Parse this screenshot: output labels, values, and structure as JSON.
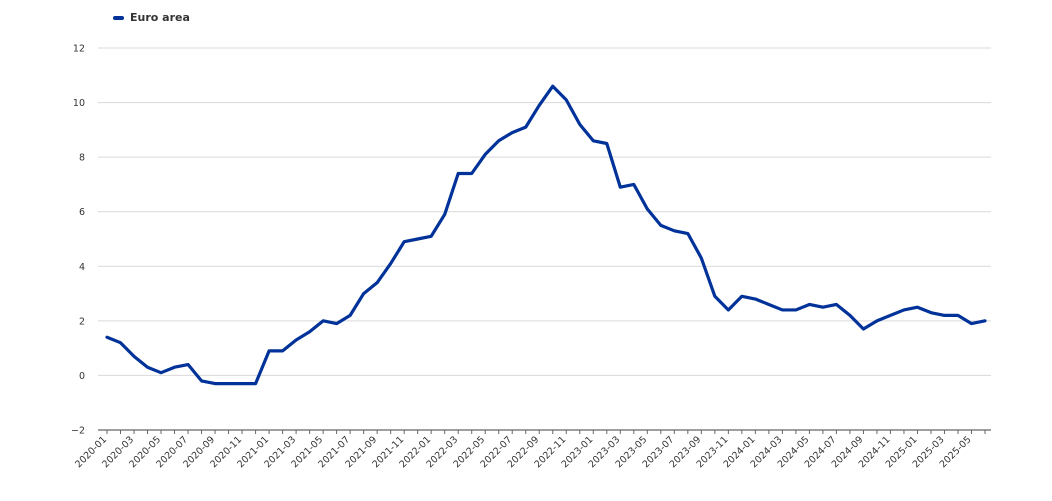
{
  "chart_data": {
    "type": "line",
    "title": "",
    "xlabel": "",
    "ylabel": "",
    "ylim": [
      -2,
      12
    ],
    "yticks": [
      -2,
      0,
      2,
      4,
      6,
      8,
      10,
      12
    ],
    "grid": true,
    "legend_position": "top-left",
    "x": [
      "2020-01",
      "2020-02",
      "2020-03",
      "2020-04",
      "2020-05",
      "2020-06",
      "2020-07",
      "2020-08",
      "2020-09",
      "2020-10",
      "2020-11",
      "2020-12",
      "2021-01",
      "2021-02",
      "2021-03",
      "2021-04",
      "2021-05",
      "2021-06",
      "2021-07",
      "2021-08",
      "2021-09",
      "2021-10",
      "2021-11",
      "2021-12",
      "2022-01",
      "2022-02",
      "2022-03",
      "2022-04",
      "2022-05",
      "2022-06",
      "2022-07",
      "2022-08",
      "2022-09",
      "2022-10",
      "2022-11",
      "2022-12",
      "2023-01",
      "2023-02",
      "2023-03",
      "2023-04",
      "2023-05",
      "2023-06",
      "2023-07",
      "2023-08",
      "2023-09",
      "2023-10",
      "2023-11",
      "2023-12",
      "2024-01",
      "2024-02",
      "2024-03",
      "2024-04",
      "2024-05",
      "2024-06",
      "2024-07",
      "2024-08",
      "2024-09",
      "2024-10",
      "2024-11",
      "2024-12",
      "2025-01",
      "2025-02",
      "2025-03",
      "2025-04",
      "2025-05",
      "2025-06"
    ],
    "x_tick_labels": [
      "2020-01",
      "2020-03",
      "2020-05",
      "2020-07",
      "2020-09",
      "2020-11",
      "2021-01",
      "2021-03",
      "2021-05",
      "2021-07",
      "2021-09",
      "2021-11",
      "2022-01",
      "2022-03",
      "2022-05",
      "2022-07",
      "2022-09",
      "2022-11",
      "2023-01",
      "2023-03",
      "2023-05",
      "2023-07",
      "2023-09",
      "2023-11",
      "2024-01",
      "2024-03",
      "2024-05",
      "2024-07",
      "2024-09",
      "2024-11",
      "2025-01",
      "2025-03",
      "2025-05"
    ],
    "series": [
      {
        "name": "Euro area",
        "color": "#003299",
        "values": [
          1.4,
          1.2,
          0.7,
          0.3,
          0.1,
          0.3,
          0.4,
          -0.2,
          -0.3,
          -0.3,
          -0.3,
          -0.3,
          0.9,
          0.9,
          1.3,
          1.6,
          2.0,
          1.9,
          2.2,
          3.0,
          3.4,
          4.1,
          4.9,
          5.0,
          5.1,
          5.9,
          7.4,
          7.4,
          8.1,
          8.6,
          8.9,
          9.1,
          9.9,
          10.6,
          10.1,
          9.2,
          8.6,
          8.5,
          6.9,
          7.0,
          6.1,
          5.5,
          5.3,
          5.2,
          4.3,
          2.9,
          2.4,
          2.9,
          2.8,
          2.6,
          2.4,
          2.4,
          2.6,
          2.5,
          2.6,
          2.2,
          1.7,
          2.0,
          2.2,
          2.4,
          2.5,
          2.3,
          2.2,
          2.2,
          1.9,
          2.0
        ]
      }
    ]
  }
}
